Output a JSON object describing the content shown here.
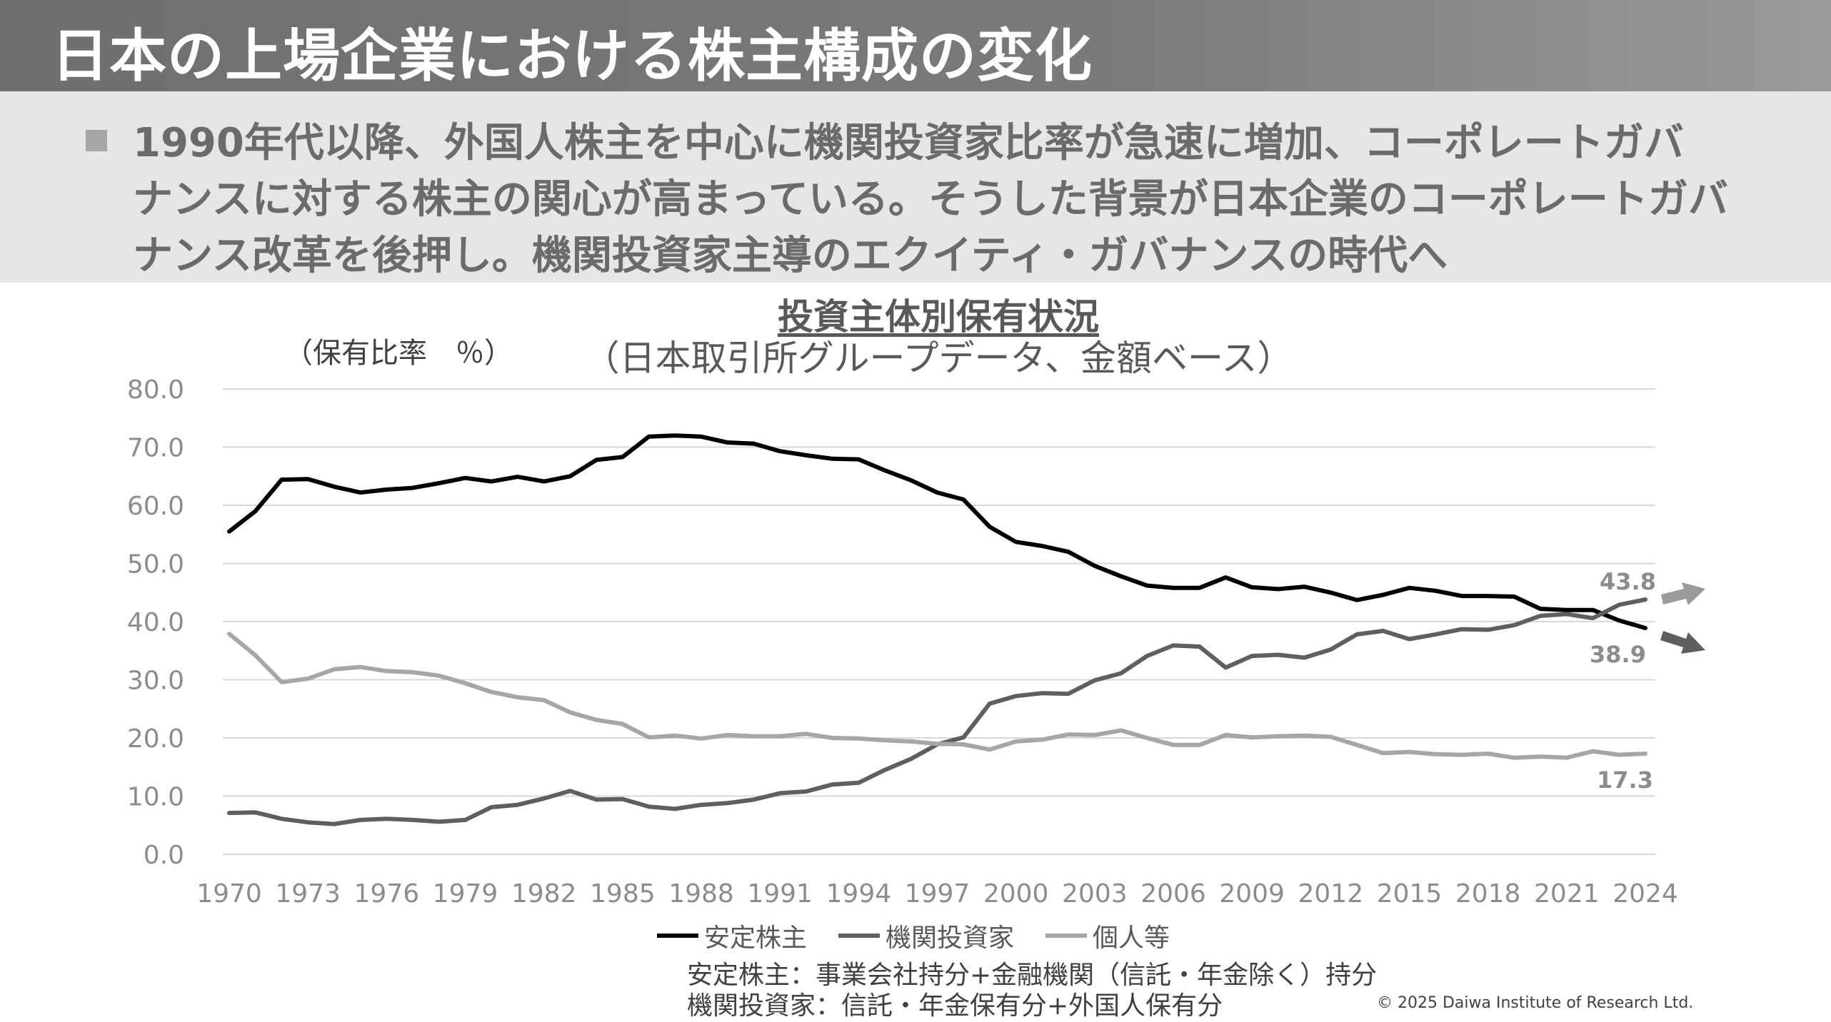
{
  "header": {
    "title": "日本の上場企業における株主構成の変化"
  },
  "summary": {
    "lines": [
      "1990年代以降、外国人株主を中心に機関投資家比率が急速に増加、コーポレートガバ",
      "ナンスに対する株主の関心が高まっている。そうした背景が日本企業のコーポレートガバ",
      "ナンス改革を後押し。機関投資家主導のエクイティ・ガバナンスの時代へ"
    ]
  },
  "chart_data": {
    "type": "line",
    "title": "投資主体別保有状況",
    "subtitle": "（日本取引所グループデータ、金額ベース）",
    "ylabel": "（保有比率　％）",
    "xlabel": "",
    "ylim": [
      0,
      80
    ],
    "yticks": [
      "0.0",
      "10.0",
      "20.0",
      "30.0",
      "40.0",
      "50.0",
      "60.0",
      "70.0",
      "80.0"
    ],
    "xticks": [
      "1970",
      "1973",
      "1976",
      "1979",
      "1982",
      "1985",
      "1988",
      "1991",
      "1994",
      "1997",
      "2000",
      "2003",
      "2006",
      "2009",
      "2012",
      "2015",
      "2018",
      "2021",
      "2024"
    ],
    "x_start": 1970,
    "x_end": 2024,
    "grid": true,
    "legend_position": "bottom",
    "series": [
      {
        "name": "安定株主",
        "color": "#000000",
        "values": [
          55.5,
          59.0,
          64.4,
          64.5,
          63.2,
          62.2,
          62.7,
          63.0,
          63.8,
          64.7,
          64.1,
          64.9,
          64.1,
          65.0,
          67.8,
          68.3,
          71.8,
          72.0,
          71.8,
          70.8,
          70.6,
          69.3,
          68.6,
          68.0,
          67.9,
          66.0,
          64.3,
          62.2,
          61.0,
          56.3,
          53.7,
          53.0,
          52.0,
          49.6,
          47.8,
          46.2,
          45.8,
          45.8,
          47.6,
          45.9,
          45.6,
          46.0,
          45.0,
          43.7,
          44.6,
          45.8,
          45.3,
          44.4,
          44.4,
          44.3,
          42.2,
          42.0,
          42.0,
          40.2,
          38.9
        ]
      },
      {
        "name": "機関投資家",
        "color": "#5f5f5f",
        "values": [
          7.1,
          7.2,
          6.1,
          5.5,
          5.2,
          5.9,
          6.1,
          5.9,
          5.6,
          5.9,
          8.1,
          8.5,
          9.6,
          10.9,
          9.4,
          9.5,
          8.2,
          7.8,
          8.5,
          8.8,
          9.4,
          10.5,
          10.8,
          12.0,
          12.3,
          14.5,
          16.4,
          18.9,
          20.1,
          25.9,
          27.2,
          27.7,
          27.6,
          29.9,
          31.1,
          34.1,
          35.9,
          35.7,
          32.1,
          34.1,
          34.3,
          33.8,
          35.2,
          37.8,
          38.4,
          37.0,
          37.8,
          38.7,
          38.6,
          39.4,
          41.0,
          41.3,
          40.6,
          42.9,
          43.8
        ]
      },
      {
        "name": "個人等",
        "color": "#a6a6a6",
        "values": [
          37.9,
          34.2,
          29.6,
          30.2,
          31.8,
          32.2,
          31.5,
          31.3,
          30.7,
          29.4,
          27.9,
          27.0,
          26.5,
          24.4,
          23.1,
          22.4,
          20.1,
          20.4,
          19.9,
          20.5,
          20.3,
          20.3,
          20.7,
          20.0,
          19.9,
          19.6,
          19.4,
          19.0,
          18.9,
          18.0,
          19.4,
          19.7,
          20.6,
          20.5,
          21.3,
          20.0,
          18.8,
          18.8,
          20.5,
          20.1,
          20.3,
          20.4,
          20.2,
          18.8,
          17.4,
          17.6,
          17.2,
          17.1,
          17.3,
          16.6,
          16.8,
          16.6,
          17.7,
          17.1,
          17.3
        ]
      }
    ],
    "end_labels": [
      "43.8",
      "38.9",
      "17.3"
    ]
  },
  "legend": {
    "items": [
      {
        "label": "安定株主",
        "color": "#000000"
      },
      {
        "label": "機関投資家",
        "color": "#5f5f5f"
      },
      {
        "label": "個人等",
        "color": "#a6a6a6"
      }
    ]
  },
  "notes": {
    "line1": "安定株主：事業会社持分+金融機関（信託・年金除く）持分",
    "line2": "機関投資家：信託・年金保有分+外国人保有分"
  },
  "footer": {
    "copyright": "© 2025 Daiwa Institute of Research Ltd."
  }
}
